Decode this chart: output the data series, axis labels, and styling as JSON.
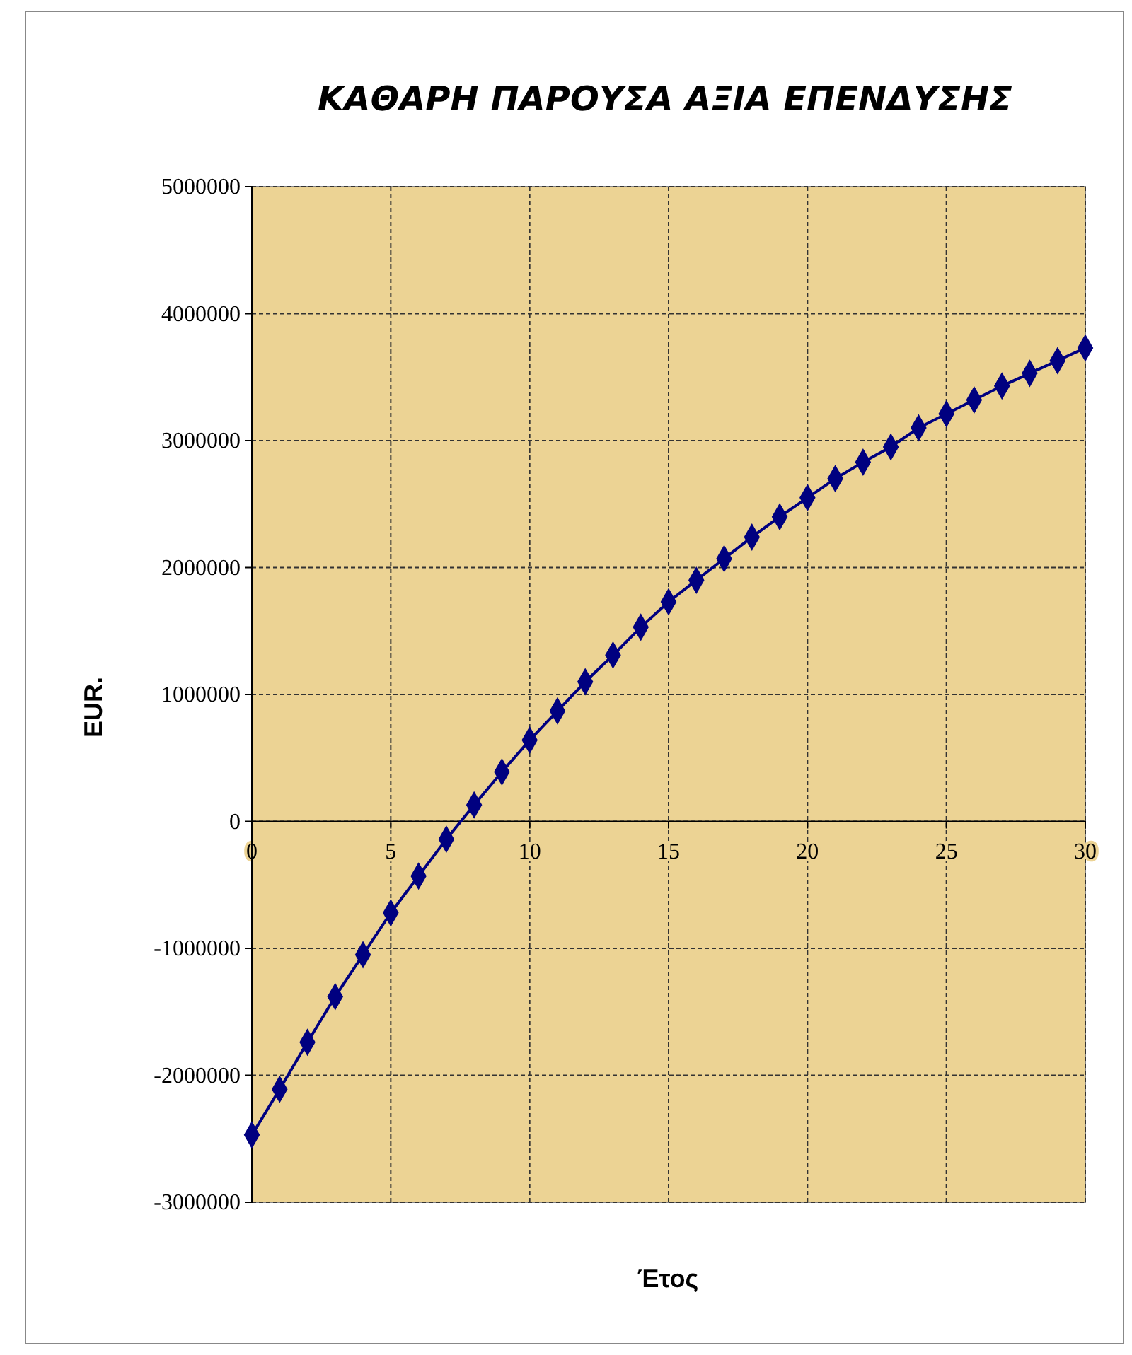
{
  "chart_data": {
    "type": "line",
    "title": "ΚΑΘΑΡΗ ΠΑΡΟΥΣΑ ΑΞΙΑ ΕΠΕΝΔΥΣΗΣ",
    "xlabel": "Έτος",
    "ylabel": "EUR.",
    "x": [
      0,
      1,
      2,
      3,
      4,
      5,
      6,
      7,
      8,
      9,
      10,
      11,
      12,
      13,
      14,
      15,
      16,
      17,
      18,
      19,
      20,
      21,
      22,
      23,
      24,
      25,
      26,
      27,
      28,
      29,
      30
    ],
    "series": [
      {
        "color": "#000080",
        "values": [
          -2470000,
          -2110000,
          -1740000,
          -1380000,
          -1050000,
          -720000,
          -430000,
          -140000,
          130000,
          390000,
          640000,
          870000,
          1100000,
          1310000,
          1530000,
          1730000,
          1900000,
          2070000,
          2240000,
          2400000,
          2550000,
          2700000,
          2830000,
          2950000,
          3100000,
          3210000,
          3320000,
          3430000,
          3530000,
          3630000,
          3730000
        ]
      }
    ],
    "xlim": [
      0,
      30
    ],
    "xticks": [
      0,
      5,
      10,
      15,
      20,
      25,
      30
    ],
    "ylim": [
      -3000000,
      5000000
    ],
    "yticks": [
      -3000000,
      -2000000,
      -1000000,
      0,
      1000000,
      2000000,
      3000000,
      4000000,
      5000000
    ],
    "grid": true,
    "marker": "diamond",
    "line_style": "solid"
  }
}
